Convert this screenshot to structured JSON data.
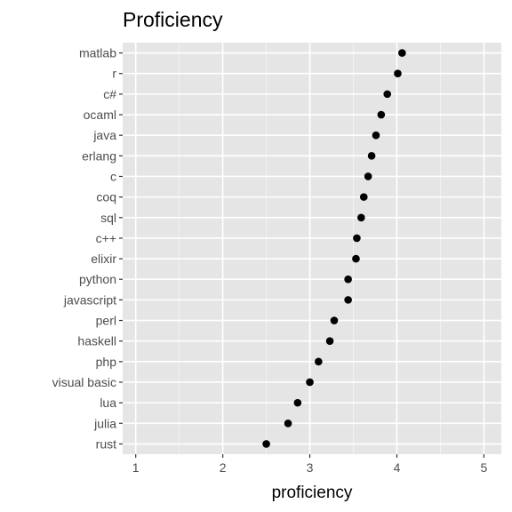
{
  "chart_data": {
    "type": "scatter",
    "title": "Proficiency",
    "xlabel": "proficiency",
    "ylabel": "",
    "xlim": [
      0.85,
      5.2
    ],
    "x_ticks": [
      1,
      2,
      3,
      4,
      5
    ],
    "grid": true,
    "legend": "none",
    "categories": [
      "matlab",
      "r",
      "c#",
      "ocaml",
      "java",
      "erlang",
      "c",
      "coq",
      "sql",
      "c++",
      "elixir",
      "python",
      "javascript",
      "perl",
      "haskell",
      "php",
      "visual basic",
      "lua",
      "julia",
      "rust"
    ],
    "values": [
      4.06,
      4.01,
      3.89,
      3.82,
      3.76,
      3.71,
      3.67,
      3.62,
      3.59,
      3.54,
      3.53,
      3.44,
      3.44,
      3.28,
      3.23,
      3.1,
      3.0,
      2.86,
      2.75,
      2.5
    ]
  },
  "colors": {
    "panel": "#e5e5e5",
    "grid_major": "#ffffff",
    "point": "#000000",
    "tick": "#333333"
  }
}
